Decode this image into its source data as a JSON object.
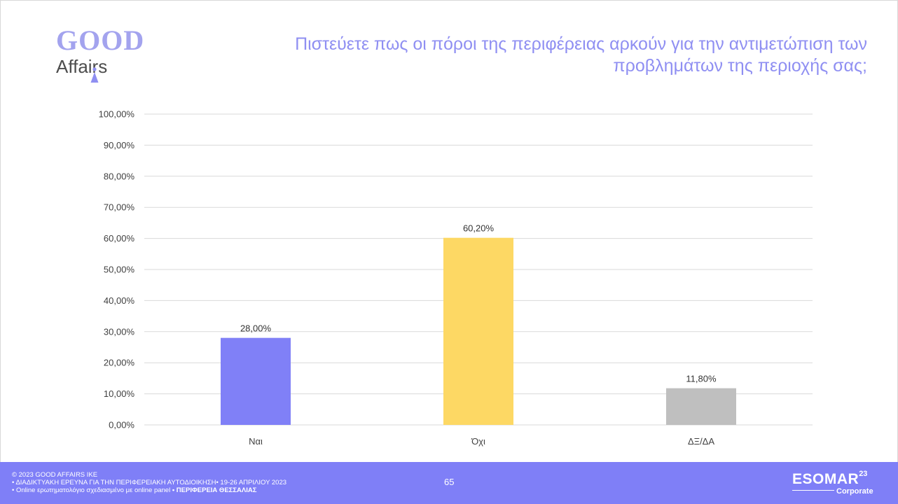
{
  "logo": {
    "line1": "GOOD",
    "line2": "Affairs"
  },
  "title": {
    "line1": "Πιστεύετε πως οι πόροι της περιφέρειας αρκούν για την αντιμετώπιση των",
    "line2": "προβλημάτων της περιοχής σας;"
  },
  "colors": {
    "accent": "#7f7ff7",
    "title": "#8f8ff2",
    "bar_yes": "#8080f7",
    "bar_no": "#fdd864",
    "bar_dk": "#bfbfbf",
    "grid": "#d9d9d9"
  },
  "chart_data": {
    "type": "bar",
    "categories": [
      "Ναι",
      "Όχι",
      "ΔΞ/ΔΑ"
    ],
    "values": [
      28.0,
      60.2,
      11.8
    ],
    "data_labels": [
      "28,00%",
      "60,20%",
      "11,80%"
    ],
    "ylim": [
      0,
      100
    ],
    "yticks": [
      0,
      10,
      20,
      30,
      40,
      50,
      60,
      70,
      80,
      90,
      100
    ],
    "ytick_labels": [
      "0,00%",
      "10,00%",
      "20,00%",
      "30,00%",
      "40,00%",
      "50,00%",
      "60,00%",
      "70,00%",
      "80,00%",
      "90,00%",
      "100,00%"
    ],
    "grid": true,
    "legend": "none"
  },
  "footer": {
    "copyright": "© 2023 GOOD AFFAIRS IKE",
    "survey": "• ΔΙΑΔΙΚΤΥΑΚΗ ΕΡΕΥΝΑ ΓΙΑ ΤΗΝ ΠΕΡΙΦΕΡΕΙΑΚΗ ΑΥΤΟΔΙΟΙΚΗΣΗ• 19-26 ΑΠΡΙΛΙΟΥ 2023",
    "method": "• Online ερωτηματολόγιο σχεδιασμένο με online panel",
    "region": "• ΠΕΡΙΦΕΡΕΙΑ ΘΕΣΣΑΛΙΑΣ",
    "page_number": "65",
    "esomar": "ESOMAR",
    "esomar_sup": "23",
    "esomar_sub": "Corporate"
  }
}
